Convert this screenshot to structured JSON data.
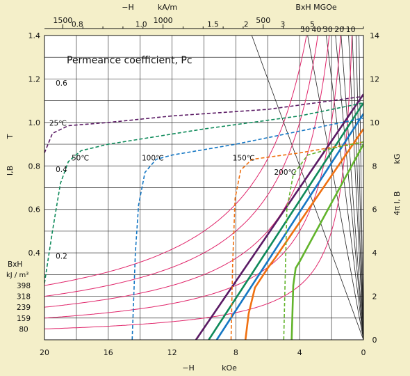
{
  "chart_data": {
    "type": "line",
    "title": "",
    "plot_annotation": "Permeance coefficient, Pc",
    "x_axis_bottom": {
      "label_left": "−H",
      "label_unit": "kOe",
      "range": [
        20,
        0
      ],
      "reversed": true,
      "ticks": [
        20,
        16,
        12,
        8,
        4,
        0
      ]
    },
    "x_axis_top": {
      "label_left": "−H",
      "label_unit": "kA/m",
      "ticks": [
        1500,
        1000,
        500
      ]
    },
    "bh_top": {
      "label": "BxH  MGOe",
      "ticks": [
        50,
        40,
        30,
        20,
        10
      ]
    },
    "y_axis_left": {
      "label_unit": "T",
      "label_axis": "I,B",
      "range": [
        0,
        1.4
      ],
      "ticks": [
        0.4,
        0.6,
        0.8,
        1.0,
        1.2,
        1.4
      ]
    },
    "y_axis_right": {
      "label_unit": "kG",
      "label_axis": "4π I, B",
      "range": [
        0,
        14
      ],
      "ticks": [
        0,
        2,
        4,
        6,
        8,
        10,
        12,
        14
      ]
    },
    "bh_left": {
      "label": "BxH",
      "unit": "kJ / m³",
      "ticks": [
        398,
        318,
        239,
        159,
        80
      ]
    },
    "grid": true,
    "permeance_lines": [
      {
        "pc": "0.2",
        "slope": 0.2,
        "label_at": [
          19.3,
          0.373
        ]
      },
      {
        "pc": "0.4",
        "slope": 0.4,
        "label_at": [
          19.3,
          0.772
        ]
      },
      {
        "pc": "0.6",
        "slope": 0.6,
        "label_at": [
          19.3,
          1.17
        ]
      },
      {
        "pc": "0.8",
        "slope": 0.8,
        "label_at": [
          18.3,
          1.44
        ]
      },
      {
        "pc": "1.0",
        "slope": 1.0,
        "label_at": [
          14.3,
          1.44
        ]
      },
      {
        "pc": "1.5",
        "slope": 1.5,
        "label_at": [
          9.8,
          1.44
        ]
      },
      {
        "pc": "2",
        "slope": 2,
        "label_at": [
          7.5,
          1.44
        ]
      },
      {
        "pc": "3",
        "slope": 3,
        "label_at": [
          5.2,
          1.44
        ]
      },
      {
        "pc": "5",
        "slope": 5,
        "label_at": [
          3.35,
          1.44
        ]
      }
    ],
    "energy_curves_mgoe": [
      10,
      20,
      30,
      40,
      50
    ],
    "temperature_labels": [
      {
        "text": "25℃",
        "at": [
          19.7,
          0.985
        ]
      },
      {
        "text": "50℃",
        "at": [
          18.3,
          0.825
        ]
      },
      {
        "text": "100℃",
        "at": [
          13.9,
          0.825
        ]
      },
      {
        "text": "150℃",
        "at": [
          8.2,
          0.825
        ]
      },
      {
        "text": "200℃",
        "at": [
          5.6,
          0.76
        ]
      }
    ],
    "series": [
      {
        "name": "25℃",
        "color": "#5a1a64",
        "B": [
          [
            20,
            0
          ],
          [
            10.5,
            0
          ],
          [
            0,
            1.13
          ]
        ],
        "J": [
          [
            20,
            0.86
          ],
          [
            19.5,
            0.95
          ],
          [
            18.5,
            0.985
          ],
          [
            16,
            1.0
          ],
          [
            12,
            1.03
          ],
          [
            6,
            1.06
          ],
          [
            0,
            1.12
          ]
        ]
      },
      {
        "name": "50℃",
        "color": "#0e8a5a",
        "B": [
          [
            20,
            0
          ],
          [
            9.7,
            0
          ],
          [
            0,
            1.09
          ]
        ],
        "J": [
          [
            20,
            0.26
          ],
          [
            19.5,
            0.5
          ],
          [
            19.0,
            0.72
          ],
          [
            18.5,
            0.82
          ],
          [
            17.7,
            0.87
          ],
          [
            16,
            0.9
          ],
          [
            10,
            0.97
          ],
          [
            4,
            1.03
          ],
          [
            0,
            1.09
          ]
        ]
      },
      {
        "name": "100℃",
        "color": "#1577c4",
        "B": [
          [
            20,
            0
          ],
          [
            9.2,
            0
          ],
          [
            0,
            1.04
          ]
        ],
        "J": [
          [
            14.5,
            0
          ],
          [
            14.3,
            0.4
          ],
          [
            14.1,
            0.62
          ],
          [
            13.7,
            0.77
          ],
          [
            13.0,
            0.83
          ],
          [
            12.0,
            0.85
          ],
          [
            8,
            0.9
          ],
          [
            4,
            0.96
          ],
          [
            0,
            1.02
          ]
        ]
      },
      {
        "name": "150℃",
        "color": "#f07010",
        "B": [
          [
            20,
            0
          ],
          [
            7.4,
            0,
            "curve"
          ],
          [
            7.2,
            0.12
          ],
          [
            6.8,
            0.24
          ],
          [
            6.0,
            0.33
          ],
          [
            5.5,
            0.38
          ],
          [
            0,
            0.97
          ]
        ],
        "J": [
          [
            8.3,
            0
          ],
          [
            8.2,
            0.35
          ],
          [
            8.05,
            0.65
          ],
          [
            7.7,
            0.78
          ],
          [
            7.0,
            0.83
          ],
          [
            4.0,
            0.86
          ],
          [
            0,
            0.91
          ]
        ]
      },
      {
        "name": "200℃",
        "color": "#62b42c",
        "B": [
          [
            20,
            0
          ],
          [
            4.5,
            0,
            "curve"
          ],
          [
            4.4,
            0.25
          ],
          [
            4.25,
            0.33
          ],
          [
            4.0,
            0.36
          ],
          [
            0,
            0.9
          ]
        ],
        "J": [
          [
            5.0,
            0
          ],
          [
            4.9,
            0.3
          ],
          [
            4.8,
            0.6
          ],
          [
            4.4,
            0.76
          ],
          [
            3.5,
            0.85
          ],
          [
            2,
            0.88
          ],
          [
            0,
            0.91
          ]
        ]
      }
    ]
  }
}
